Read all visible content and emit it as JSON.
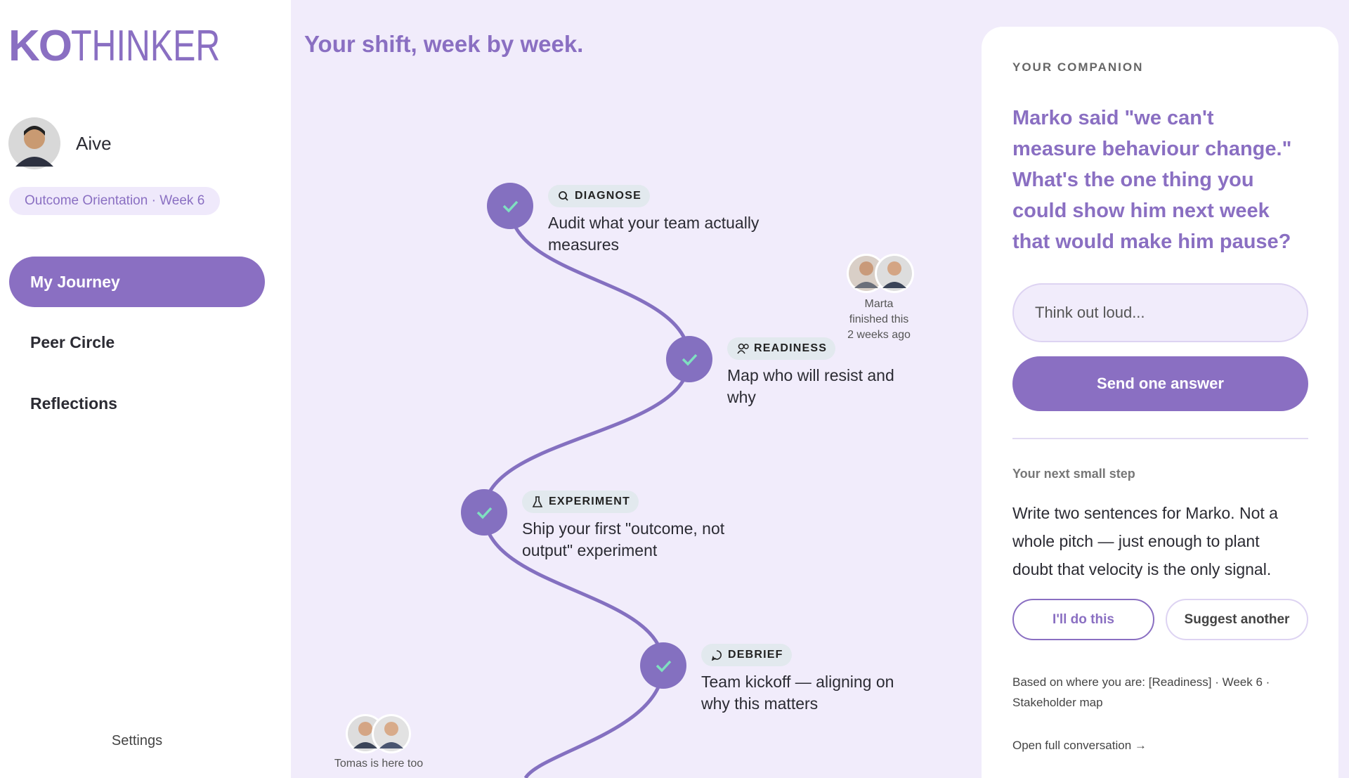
{
  "logo": {
    "bold": "KO",
    "light": "THINKER"
  },
  "profile": {
    "name": "Aive",
    "badge": "Outcome Orientation · Week 6"
  },
  "nav": [
    "My Journey",
    "Peer Circle",
    "Reflections"
  ],
  "settings": "Settings",
  "main": {
    "title": "Your shift, week by week.",
    "steps": [
      {
        "tag": "DIAGNOSE",
        "lines": [
          "Audit what your team actually",
          "measures"
        ]
      },
      {
        "tag": "READINESS",
        "lines": [
          "Map who will resist and",
          "why"
        ]
      },
      {
        "tag": "EXPERIMENT",
        "lines": [
          "Ship your first \"outcome, not",
          "output\" experiment"
        ]
      },
      {
        "tag": "DEBRIEF",
        "lines": [
          "Team kickoff — aligning on",
          "why this matters"
        ]
      }
    ],
    "peers": [
      {
        "lines": [
          "Marta",
          "finished this",
          "2 weeks ago"
        ]
      },
      {
        "lines": [
          "Tomas is here too"
        ]
      }
    ]
  },
  "companion": {
    "label": "YOUR COMPANION",
    "question": [
      "Marko said \"we can't",
      "measure behaviour change.\"",
      "What's the one thing you",
      "could show him next week",
      "that would make him pause?"
    ],
    "placeholder": "Think out loud...",
    "send": "Send one answer",
    "next_label": "Your next small step",
    "next_lines": [
      "Write two sentences for Marko. Not a",
      "whole pitch — just enough to plant",
      "doubt that velocity is the only signal."
    ],
    "buttons": [
      "I'll do this",
      "Suggest another"
    ],
    "based": [
      "Based on where you are: [Readiness] · Week 6 ·",
      "Stakeholder map"
    ],
    "open": "Open full conversation →"
  }
}
